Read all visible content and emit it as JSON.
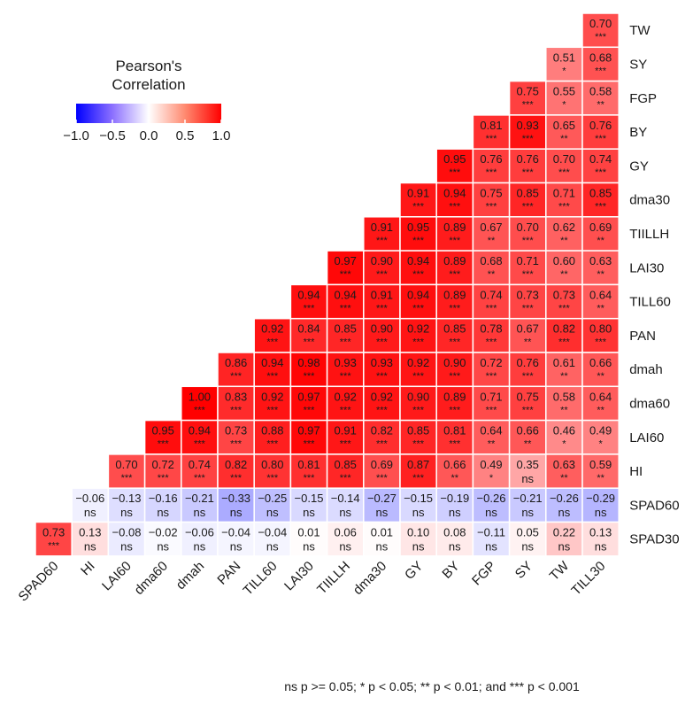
{
  "chart_data": {
    "type": "heatmap",
    "title": "",
    "legend": {
      "title_line1": "Pearson's",
      "title_line2": "Correlation",
      "range": [
        -1.0,
        1.0
      ],
      "ticks": [
        "-1.0",
        "-0.5",
        "0.0",
        "0.5",
        "1.0"
      ],
      "colors": {
        "low": "#0000ff",
        "mid": "#ffffff",
        "high": "#ff0000"
      }
    },
    "x_labels": [
      "SPAD60",
      "HI",
      "LAI60",
      "dma60",
      "dmah",
      "PAN",
      "TILL60",
      "LAI30",
      "TIILLH",
      "dma30",
      "GY",
      "BY",
      "FGP",
      "SY",
      "TW",
      "TILL30"
    ],
    "y_labels": [
      "TW",
      "SY",
      "FGP",
      "BY",
      "GY",
      "dma30",
      "TIILLH",
      "LAI30",
      "TILL60",
      "PAN",
      "dmah",
      "dma60",
      "LAI60",
      "HI",
      "SPAD60",
      "SPAD30"
    ],
    "rows": [
      {
        "values": [
          0.7
        ],
        "sig": [
          "***"
        ]
      },
      {
        "values": [
          0.51,
          0.68
        ],
        "sig": [
          "*",
          "***"
        ]
      },
      {
        "values": [
          0.75,
          0.55,
          0.58
        ],
        "sig": [
          "***",
          "*",
          "**"
        ]
      },
      {
        "values": [
          0.81,
          0.93,
          0.65,
          0.76
        ],
        "sig": [
          "***",
          "***",
          "**",
          "***"
        ]
      },
      {
        "values": [
          0.95,
          0.76,
          0.76,
          0.7,
          0.74
        ],
        "sig": [
          "***",
          "***",
          "***",
          "***",
          "***"
        ]
      },
      {
        "values": [
          0.91,
          0.94,
          0.75,
          0.85,
          0.71,
          0.85
        ],
        "sig": [
          "***",
          "***",
          "***",
          "***",
          "***",
          "***"
        ]
      },
      {
        "values": [
          0.91,
          0.95,
          0.89,
          0.67,
          0.7,
          0.62,
          0.69
        ],
        "sig": [
          "***",
          "***",
          "***",
          "**",
          "***",
          "**",
          "**"
        ]
      },
      {
        "values": [
          0.97,
          0.9,
          0.94,
          0.89,
          0.68,
          0.71,
          0.6,
          0.63
        ],
        "sig": [
          "***",
          "***",
          "***",
          "***",
          "**",
          "***",
          "**",
          "**"
        ]
      },
      {
        "values": [
          0.94,
          0.94,
          0.91,
          0.94,
          0.89,
          0.74,
          0.73,
          0.73,
          0.64
        ],
        "sig": [
          "***",
          "***",
          "***",
          "***",
          "***",
          "***",
          "***",
          "***",
          "**"
        ]
      },
      {
        "values": [
          0.92,
          0.84,
          0.85,
          0.9,
          0.92,
          0.85,
          0.78,
          0.67,
          0.82,
          0.8
        ],
        "sig": [
          "***",
          "***",
          "***",
          "***",
          "***",
          "***",
          "***",
          "**",
          "***",
          "***"
        ]
      },
      {
        "values": [
          0.86,
          0.94,
          0.98,
          0.93,
          0.93,
          0.92,
          0.9,
          0.72,
          0.76,
          0.61,
          0.66
        ],
        "sig": [
          "***",
          "***",
          "***",
          "***",
          "***",
          "***",
          "***",
          "***",
          "***",
          "**",
          "**"
        ]
      },
      {
        "values": [
          1.0,
          0.83,
          0.92,
          0.97,
          0.92,
          0.92,
          0.9,
          0.89,
          0.71,
          0.75,
          0.58,
          0.64
        ],
        "sig": [
          "***",
          "***",
          "***",
          "***",
          "***",
          "***",
          "***",
          "***",
          "***",
          "***",
          "**",
          "**"
        ]
      },
      {
        "values": [
          0.95,
          0.94,
          0.73,
          0.88,
          0.97,
          0.91,
          0.82,
          0.85,
          0.81,
          0.64,
          0.66,
          0.46,
          0.49
        ],
        "sig": [
          "***",
          "***",
          "***",
          "***",
          "***",
          "***",
          "***",
          "***",
          "***",
          "**",
          "**",
          "*",
          "*"
        ]
      },
      {
        "values": [
          0.7,
          0.72,
          0.74,
          0.82,
          0.8,
          0.81,
          0.85,
          0.69,
          0.87,
          0.66,
          0.49,
          0.35,
          0.63,
          0.59
        ],
        "sig": [
          "***",
          "***",
          "***",
          "***",
          "***",
          "***",
          "***",
          "***",
          "***",
          "**",
          "*",
          "ns",
          "**",
          "**"
        ]
      },
      {
        "values": [
          -0.06,
          -0.13,
          -0.16,
          -0.21,
          -0.33,
          -0.25,
          -0.15,
          -0.14,
          -0.27,
          -0.15,
          -0.19,
          -0.26,
          -0.21,
          -0.26,
          -0.29
        ],
        "sig": [
          "ns",
          "ns",
          "ns",
          "ns",
          "ns",
          "ns",
          "ns",
          "ns",
          "ns",
          "ns",
          "ns",
          "ns",
          "ns",
          "ns",
          "ns"
        ]
      },
      {
        "values": [
          0.73,
          0.13,
          -0.08,
          -0.02,
          -0.06,
          -0.04,
          -0.04,
          0.01,
          0.06,
          0.01,
          0.1,
          0.08,
          -0.11,
          0.05,
          0.22,
          0.13
        ],
        "sig": [
          "***",
          "ns",
          "ns",
          "ns",
          "ns",
          "ns",
          "ns",
          "ns",
          "ns",
          "ns",
          "ns",
          "ns",
          "ns",
          "ns",
          "ns",
          "ns"
        ]
      }
    ],
    "footnote": "ns p >= 0.05; * p < 0.05; ** p < 0.01; and *** p < 0.001"
  }
}
